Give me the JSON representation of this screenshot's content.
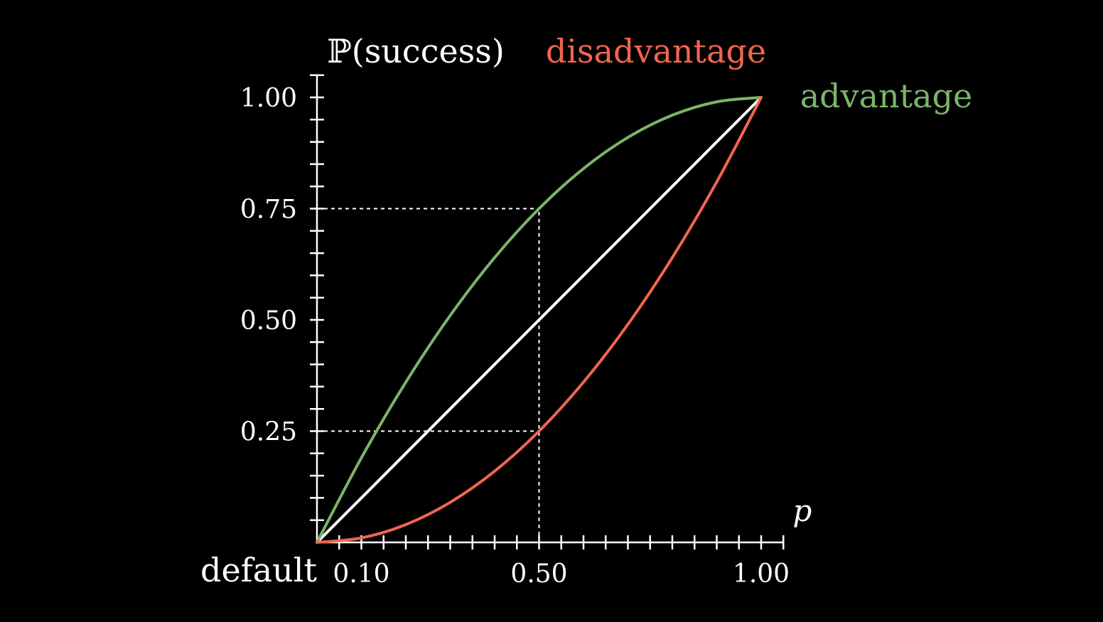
{
  "chart_data": {
    "type": "line",
    "background": "#000000",
    "xlabel": "p",
    "ylabel": "ℙ(success)",
    "xlim": [
      0,
      1.05
    ],
    "ylim": [
      0,
      1.05
    ],
    "x_ticks_major_step": 0.05,
    "x_tick_labels": [
      {
        "value": 0.1,
        "label": "0.10"
      },
      {
        "value": 0.5,
        "label": "0.50"
      },
      {
        "value": 1.0,
        "label": "1.00"
      }
    ],
    "y_ticks_major_step": 0.05,
    "y_tick_labels": [
      {
        "value": 0.25,
        "label": "0.25"
      },
      {
        "value": 0.5,
        "label": "0.50"
      },
      {
        "value": 0.75,
        "label": "0.75"
      },
      {
        "value": 1.0,
        "label": "1.00"
      }
    ],
    "series": [
      {
        "name": "default",
        "color": "#ffffff",
        "x": [
          0,
          0.1,
          0.2,
          0.3,
          0.4,
          0.5,
          0.6,
          0.7,
          0.8,
          0.9,
          1.0
        ],
        "y": [
          0,
          0.1,
          0.2,
          0.3,
          0.4,
          0.5,
          0.6,
          0.7,
          0.8,
          0.9,
          1.0
        ]
      },
      {
        "name": "advantage",
        "color": "#7cb469",
        "x": [
          0,
          0.1,
          0.2,
          0.3,
          0.4,
          0.5,
          0.6,
          0.7,
          0.8,
          0.9,
          1.0
        ],
        "y": [
          0,
          0.19,
          0.36,
          0.51,
          0.64,
          0.75,
          0.84,
          0.91,
          0.96,
          0.99,
          1.0
        ]
      },
      {
        "name": "disadvantage",
        "color": "#f2654f",
        "x": [
          0,
          0.1,
          0.2,
          0.3,
          0.4,
          0.5,
          0.6,
          0.7,
          0.8,
          0.9,
          1.0
        ],
        "y": [
          0,
          0.01,
          0.04,
          0.09,
          0.16,
          0.25,
          0.36,
          0.49,
          0.64,
          0.81,
          1.0
        ]
      }
    ],
    "guides": [
      {
        "x": 0.5,
        "y": 0.75
      },
      {
        "x": 0.5,
        "y": 0.25
      }
    ],
    "annotations": {
      "default_label": "default",
      "advantage_label": "advantage",
      "disadvantage_label": "disadvantage"
    },
    "colors": {
      "axis": "#ffffff",
      "advantage": "#7cb469",
      "disadvantage": "#f2654f",
      "default": "#ffffff"
    }
  }
}
